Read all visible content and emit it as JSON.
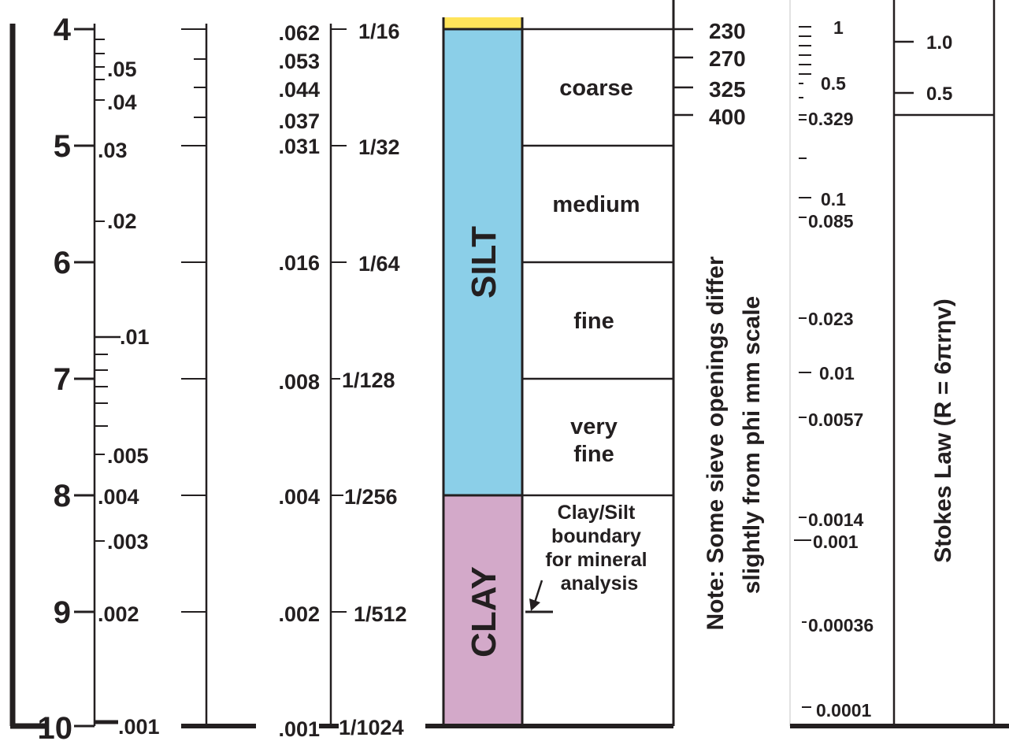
{
  "colors": {
    "ink": "#231f20",
    "sand": "#ffe45a",
    "silt": "#8bcfe8",
    "clay": "#d3a9c9"
  },
  "phi_scale": {
    "labels": [
      "4",
      "5",
      "6",
      "7",
      "8",
      "9",
      "10"
    ]
  },
  "mm_fine_scale": {
    "labels": [
      ".05",
      ".04",
      ".03",
      ".02",
      ".01",
      ".005",
      ".004",
      ".003",
      ".002",
      ".001"
    ]
  },
  "mm_decimal_scale": {
    "labels": [
      ".062",
      ".053",
      ".044",
      ".037",
      ".031",
      ".016",
      ".008",
      ".004",
      ".002",
      ".001"
    ]
  },
  "mm_fraction_scale": {
    "labels": [
      "1/16",
      "1/32",
      "1/64",
      "1/128",
      "1/256",
      "1/512",
      "1/1024"
    ]
  },
  "size_class": {
    "silt_label": "SILT",
    "clay_label": "CLAY"
  },
  "silt_subclass": {
    "coarse": "coarse",
    "medium": "medium",
    "fine": "fine",
    "very_fine_line1": "very",
    "very_fine_line2": "fine",
    "clay_note_lines": [
      "Clay/Silt",
      "boundary",
      "for mineral",
      "analysis"
    ]
  },
  "sieve_sizes": {
    "labels": [
      "230",
      "270",
      "325",
      "400"
    ],
    "note_line1": "Note: Some sieve openings differ",
    "note_line2": "slightly from phi mm scale"
  },
  "settling_velocity": {
    "labels": [
      "1",
      "0.5",
      "0.329",
      "0.1",
      "0.085",
      "0.023",
      "0.01",
      "0.0057",
      "0.0014",
      "0.001",
      "0.00036",
      "0.0001"
    ]
  },
  "stokes": {
    "upper_labels": [
      "1.0",
      "0.5"
    ],
    "law_label": "Stokes Law (R = 6πrηv)"
  }
}
